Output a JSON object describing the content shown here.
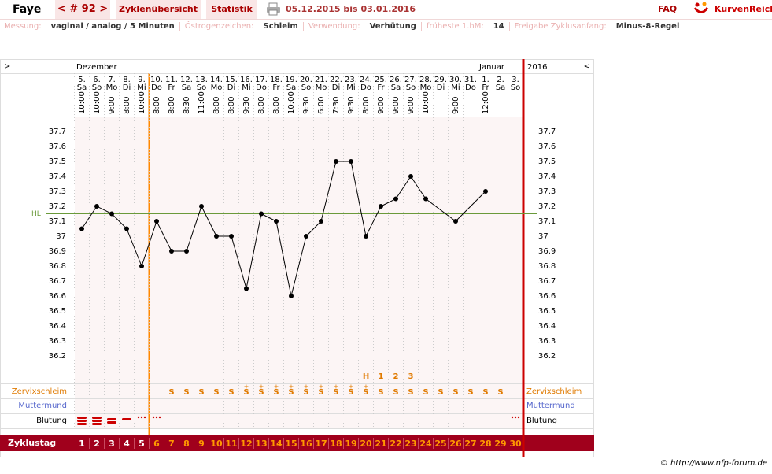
{
  "header": {
    "name": "Faye",
    "cycle": "< # 92 >",
    "tabs": [
      "Zyklenübersicht",
      "Statistik"
    ],
    "period": "05.12.2015 bis 03.01.2016",
    "faq": "FAQ",
    "brand": "KurvenReich"
  },
  "settings": [
    {
      "label": "Messung:",
      "value": "vaginal / analog / 5 Minuten"
    },
    {
      "label": "Östrogenzeichen:",
      "value": "Schleim"
    },
    {
      "label": "Verwendung:",
      "value": "Verhütung"
    },
    {
      "label": "früheste 1.hM:",
      "value": "14"
    },
    {
      "label": "Freigabe Zyklusanfang:",
      "value": "Minus-8-Regel"
    }
  ],
  "chart_data": {
    "type": "line",
    "nav_prev": ">",
    "nav_next": "<",
    "months": [
      "Dezember",
      "Januar"
    ],
    "year": "2016",
    "categories": [
      "5.",
      "6.",
      "7.",
      "8.",
      "9.",
      "10.",
      "11.",
      "12.",
      "13.",
      "14.",
      "15.",
      "16.",
      "17.",
      "18.",
      "19.",
      "20.",
      "21.",
      "22.",
      "23.",
      "24.",
      "25.",
      "26.",
      "27.",
      "28.",
      "29.",
      "30.",
      "31.",
      "1.",
      "2.",
      "3."
    ],
    "weekdays": [
      "Sa",
      "So",
      "Mo",
      "Di",
      "Mi",
      "Do",
      "Fr",
      "Sa",
      "So",
      "Mo",
      "Di",
      "Mi",
      "Do",
      "Fr",
      "Sa",
      "So",
      "Mo",
      "Di",
      "Mi",
      "Do",
      "Fr",
      "Sa",
      "So",
      "Mo",
      "Di",
      "Mi",
      "Do",
      "Fr",
      "Sa",
      "So"
    ],
    "times": [
      "10:00",
      "10:00",
      "9:00",
      "8:00",
      "10:00",
      "8:00",
      "8:00",
      "8:30",
      "11:00",
      "8:00",
      "8:00",
      "9:30",
      "8:00",
      "8:00",
      "10:00",
      "9:30",
      "6:00",
      "7:30",
      "9:30",
      "8:00",
      "9:00",
      "9:00",
      "9:00",
      "10:00",
      null,
      "9:00",
      null,
      "12:00",
      null,
      null
    ],
    "values": [
      37.05,
      37.2,
      37.15,
      37.05,
      36.8,
      37.1,
      36.9,
      36.9,
      37.2,
      37.0,
      37.0,
      36.65,
      37.15,
      37.1,
      36.6,
      37.0,
      37.1,
      37.5,
      37.5,
      37.0,
      37.2,
      37.25,
      37.4,
      37.25,
      null,
      37.1,
      null,
      37.3,
      null,
      null
    ],
    "color": "#000000",
    "ylim": [
      36.1,
      37.8
    ],
    "yticks": [
      37.7,
      37.6,
      37.5,
      37.4,
      37.3,
      37.2,
      37.1,
      37,
      36.9,
      36.8,
      36.7,
      36.6,
      36.5,
      36.4,
      36.3,
      36.2
    ],
    "grid": false,
    "coverline": {
      "label": "HL",
      "value": 37.15,
      "color": "#6a9a3a"
    },
    "peak_signs": [
      null,
      null,
      null,
      null,
      null,
      null,
      null,
      null,
      null,
      null,
      null,
      null,
      null,
      null,
      null,
      null,
      null,
      null,
      null,
      "H",
      "1",
      "2",
      "3",
      null,
      null,
      null,
      null,
      null,
      null,
      null
    ],
    "row_labels": [
      "Zervixschleim",
      "Muttermund",
      "Blutung",
      "Zyklustag"
    ],
    "cervix_plus": [
      null,
      null,
      null,
      null,
      null,
      null,
      null,
      null,
      null,
      null,
      null,
      "+",
      "+",
      "+",
      "+",
      "+",
      "+",
      "+",
      "+",
      "+",
      null,
      null,
      null,
      null,
      null,
      null,
      null,
      null,
      null,
      null
    ],
    "cervix": [
      null,
      null,
      null,
      null,
      null,
      null,
      "S",
      "S",
      "S",
      "S",
      "S",
      "S",
      "S",
      "S",
      "S",
      "S",
      "S",
      "S",
      "S",
      "S",
      "S",
      "S",
      "S",
      "S",
      "S",
      "S",
      "S",
      "S",
      "S",
      null
    ],
    "cycle_days": [
      1,
      2,
      3,
      4,
      5,
      6,
      7,
      8,
      9,
      10,
      11,
      12,
      13,
      14,
      15,
      16,
      17,
      18,
      19,
      20,
      21,
      22,
      23,
      24,
      25,
      26,
      27,
      28,
      29,
      30
    ],
    "cycle_day_colors": [
      "#ffffff",
      "#ffffff",
      "#ffffff",
      "#ffffff",
      "#ffffff",
      "#ff9900",
      "#ff9900",
      "#ff9900",
      "#ff9900",
      "#ff9900",
      "#ff9900",
      "#ff9900",
      "#ff9900",
      "#ff9900",
      "#ff9900",
      "#ff9900",
      "#ff9900",
      "#ff9900",
      "#ff9900",
      "#ff9900",
      "#ff9900",
      "#ff9900",
      "#ff9900",
      "#ff9900",
      "#ff9900",
      "#ff9900",
      "#ff9900",
      "#ff9900",
      "#ff9900",
      "#ff9900"
    ]
  },
  "footer": "© http://www.nfp-forum.de"
}
